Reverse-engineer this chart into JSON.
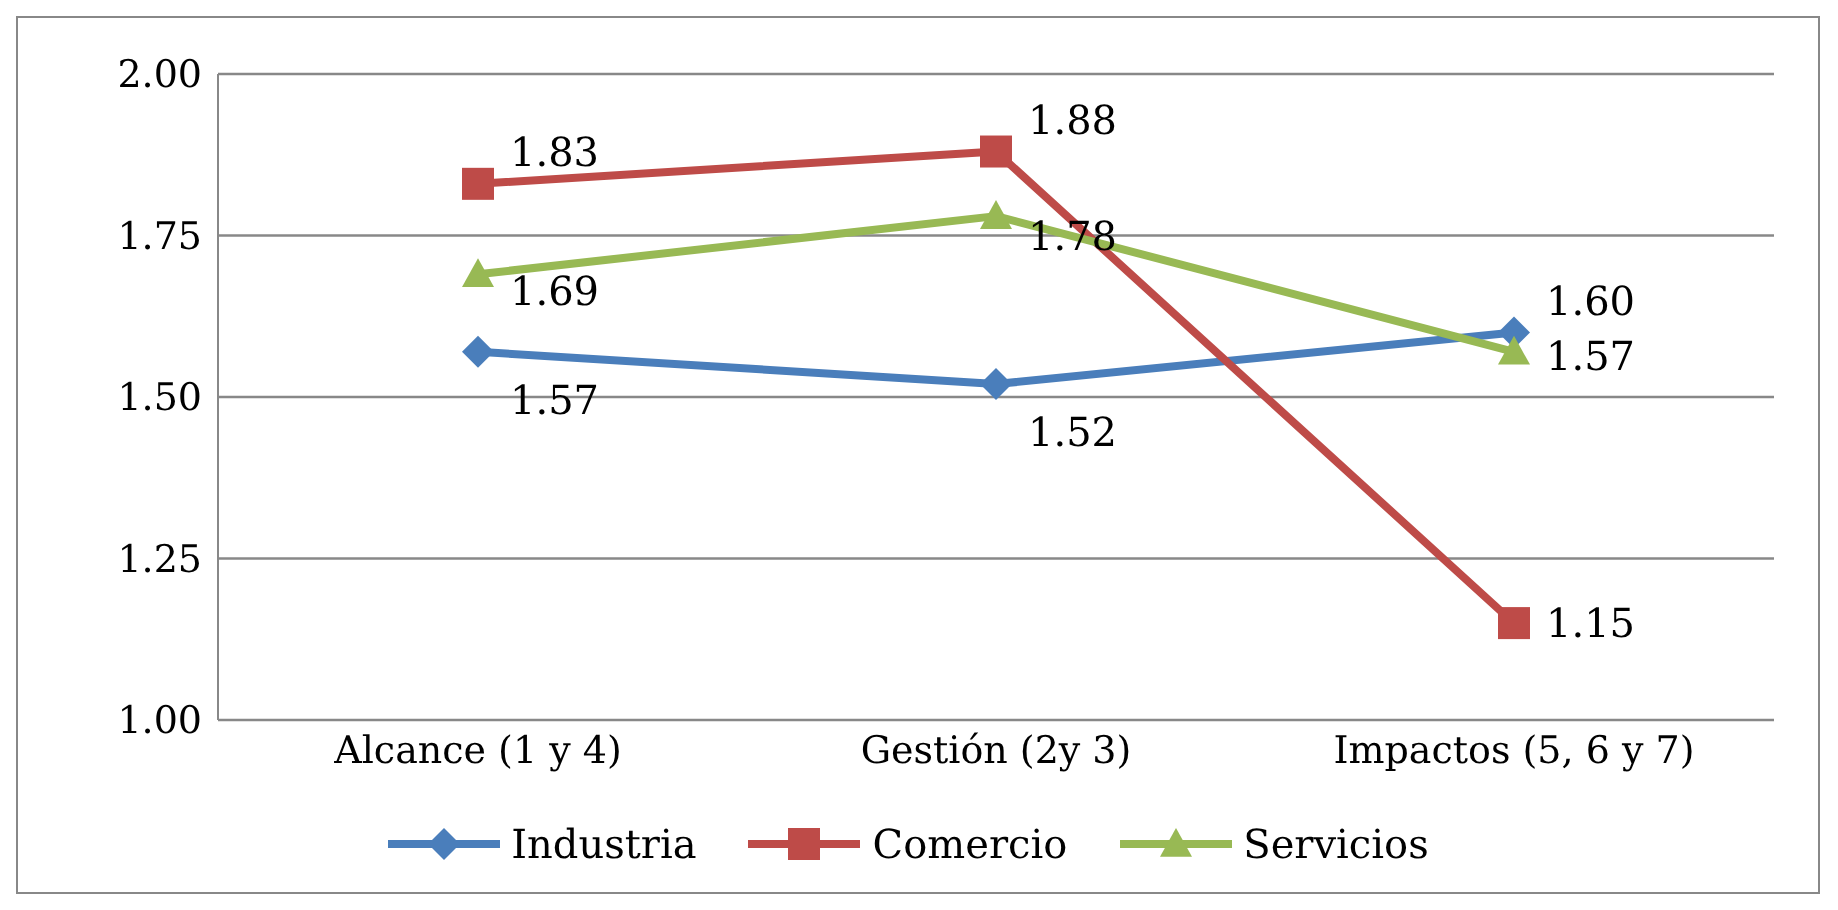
{
  "chart_data": {
    "type": "line",
    "categories": [
      "Alcance (1 y 4)",
      "Gestión (2y 3)",
      "Impactos (5, 6 y 7)"
    ],
    "series": [
      {
        "name": "Industria",
        "color": "#4a7ebb",
        "marker": "diamond",
        "values": [
          1.57,
          1.52,
          1.6
        ],
        "value_labels": [
          "1.57",
          "1.52",
          "1.60"
        ]
      },
      {
        "name": "Comercio",
        "color": "#be4b48",
        "marker": "square",
        "values": [
          1.83,
          1.88,
          1.15
        ],
        "value_labels": [
          "1.83",
          "1.88",
          "1.15"
        ]
      },
      {
        "name": "Servicios",
        "color": "#98b954",
        "marker": "triangle",
        "values": [
          1.69,
          1.78,
          1.57
        ],
        "value_labels": [
          "1.69",
          "1.78",
          "1.57"
        ]
      }
    ],
    "ylim": [
      1.0,
      2.0
    ],
    "yticks": [
      {
        "value": 1.0,
        "label": "1.00"
      },
      {
        "value": 1.25,
        "label": "1.25"
      },
      {
        "value": 1.5,
        "label": "1.50"
      },
      {
        "value": 1.75,
        "label": "1.75"
      },
      {
        "value": 2.0,
        "label": "2.00"
      }
    ],
    "grid": "y",
    "legend": "bottom"
  }
}
